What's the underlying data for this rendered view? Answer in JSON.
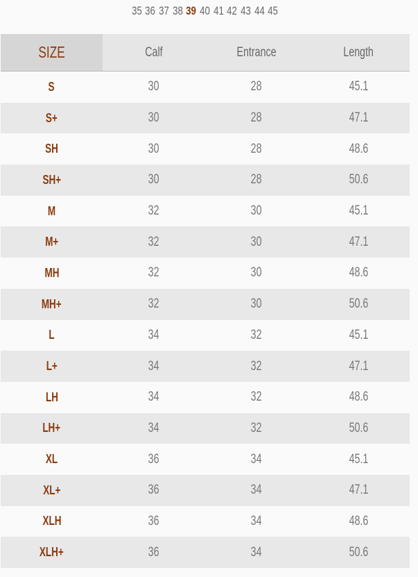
{
  "size_selector": {
    "sizes": [
      "35",
      "36",
      "37",
      "38",
      "39",
      "40",
      "41",
      "42",
      "43",
      "44",
      "45"
    ],
    "selected": "39"
  },
  "colors": {
    "accent": "#8b3a0e",
    "header_bg": "#e6e6e6",
    "alt_row_bg": "#e8e8e8"
  },
  "table": {
    "headers": [
      "SIZE",
      "Calf",
      "Entrance",
      "Length"
    ],
    "rows": [
      [
        "S",
        "30",
        "28",
        "45.1"
      ],
      [
        "S+",
        "30",
        "28",
        "47.1"
      ],
      [
        "SH",
        "30",
        "28",
        "48.6"
      ],
      [
        "SH+",
        "30",
        "28",
        "50.6"
      ],
      [
        "M",
        "32",
        "30",
        "45.1"
      ],
      [
        "M+",
        "32",
        "30",
        "47.1"
      ],
      [
        "MH",
        "32",
        "30",
        "48.6"
      ],
      [
        "MH+",
        "32",
        "30",
        "50.6"
      ],
      [
        "L",
        "34",
        "32",
        "45.1"
      ],
      [
        "L+",
        "34",
        "32",
        "47.1"
      ],
      [
        "LH",
        "34",
        "32",
        "48.6"
      ],
      [
        "LH+",
        "34",
        "32",
        "50.6"
      ],
      [
        "XL",
        "36",
        "34",
        "45.1"
      ],
      [
        "XL+",
        "36",
        "34",
        "47.1"
      ],
      [
        "XLH",
        "36",
        "34",
        "48.6"
      ],
      [
        "XLH+",
        "36",
        "34",
        "50.6"
      ]
    ]
  }
}
